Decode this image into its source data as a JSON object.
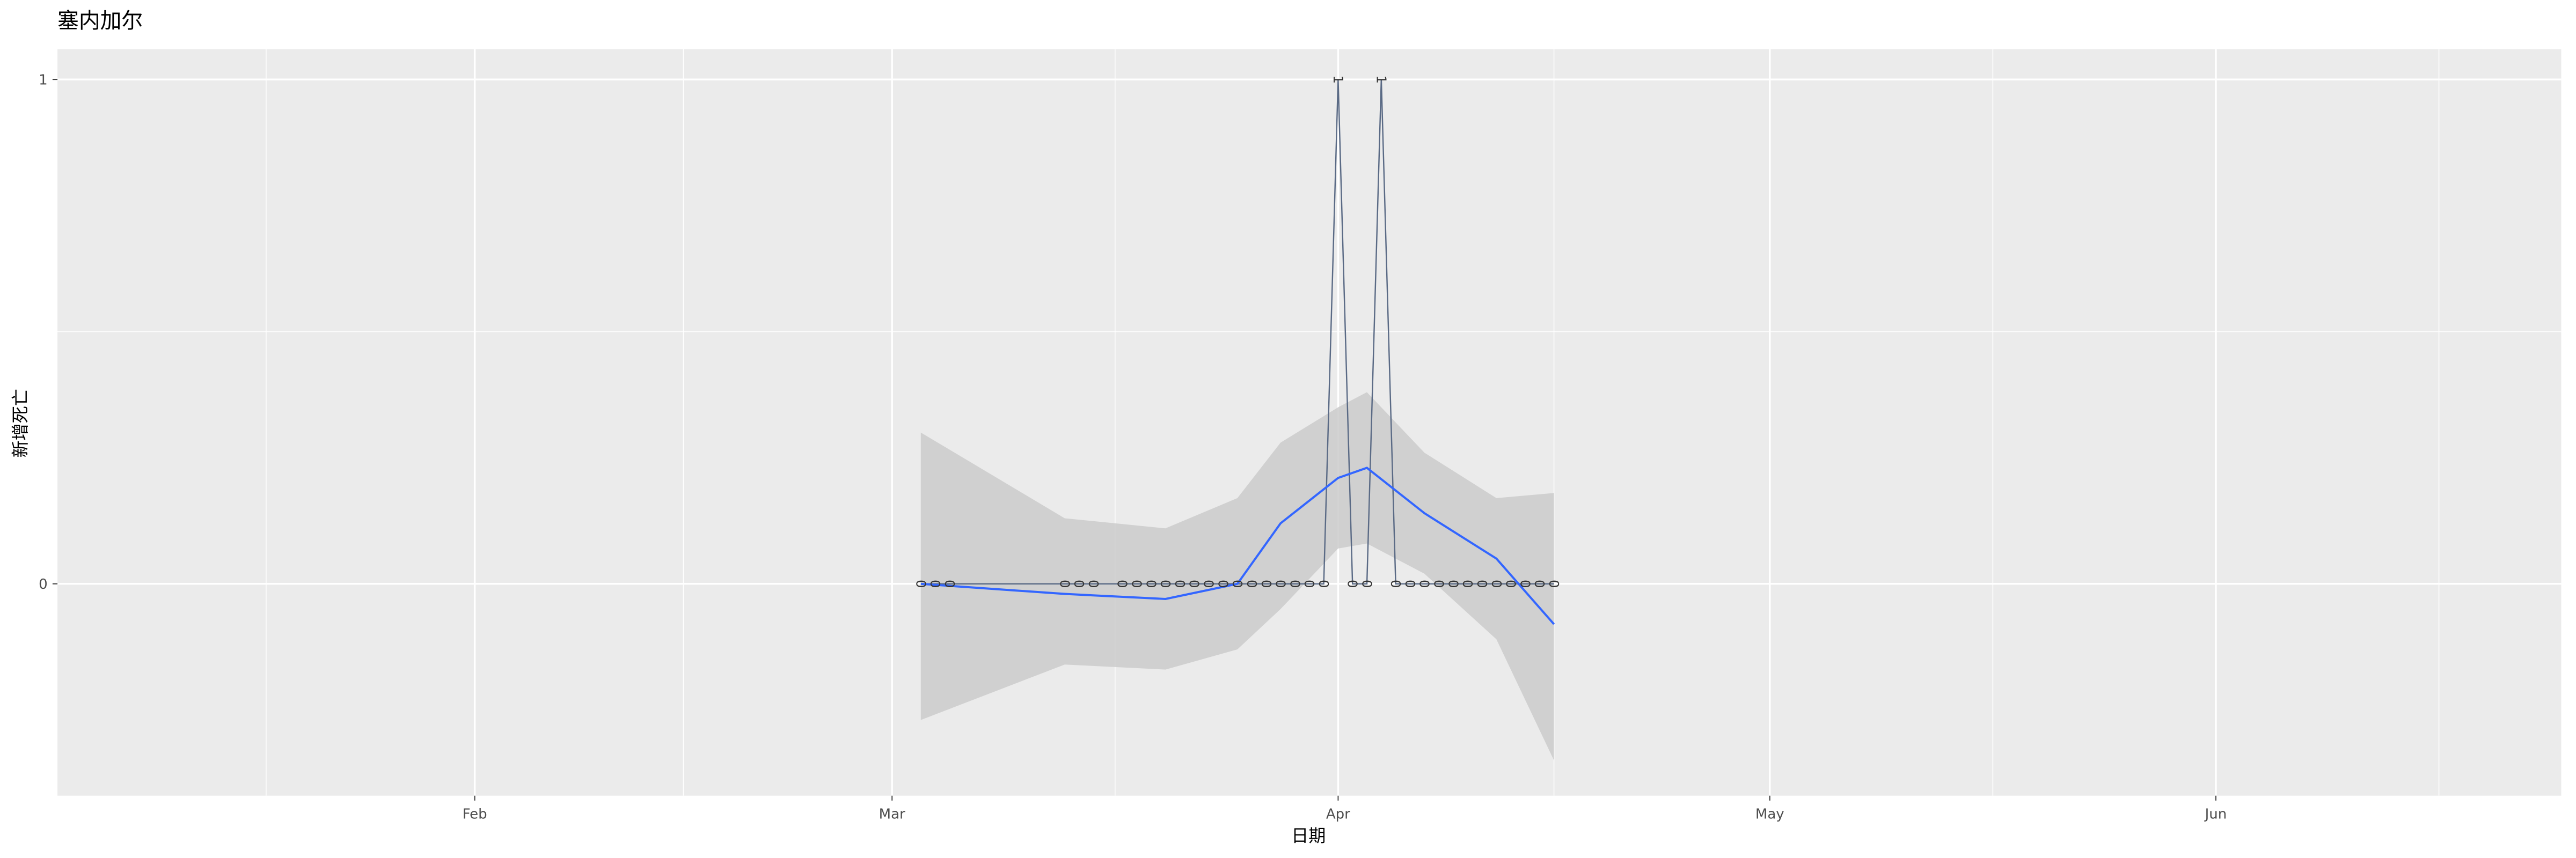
{
  "chart_data": {
    "type": "line",
    "title": "塞内加尔",
    "x_label": "日期",
    "y_label": "新增死亡",
    "x": [
      "Mar 3",
      "Mar 4",
      "Mar 5",
      "Mar 13",
      "Mar 14",
      "Mar 15",
      "Mar 17",
      "Mar 18",
      "Mar 19",
      "Mar 20",
      "Mar 21",
      "Mar 22",
      "Mar 23",
      "Mar 24",
      "Mar 25",
      "Mar 26",
      "Mar 27",
      "Mar 28",
      "Mar 29",
      "Mar 30",
      "Mar 31",
      "Apr 1",
      "Apr 2",
      "Apr 3",
      "Apr 4",
      "Apr 5",
      "Apr 6",
      "Apr 7",
      "Apr 8",
      "Apr 9",
      "Apr 10",
      "Apr 11",
      "Apr 12",
      "Apr 13",
      "Apr 14",
      "Apr 15",
      "Apr 16"
    ],
    "values": [
      0,
      0,
      0,
      0,
      0,
      0,
      0,
      0,
      0,
      0,
      0,
      0,
      0,
      0,
      0,
      0,
      0,
      0,
      0,
      0,
      0,
      1,
      0,
      0,
      1,
      0,
      0,
      0,
      0,
      0,
      0,
      0,
      0,
      0,
      0,
      0,
      0
    ],
    "color": "#5a6a85",
    "smooth": {
      "x": [
        "Mar 3",
        "Mar 13",
        "Mar 20",
        "Mar 25",
        "Mar 28",
        "Apr 1",
        "Apr 3",
        "Apr 7",
        "Apr 12",
        "Apr 16"
      ],
      "values": [
        0.0,
        -0.02,
        -0.03,
        0.0,
        0.12,
        0.21,
        0.23,
        0.14,
        0.05,
        -0.08
      ],
      "lower": [
        -0.27,
        -0.16,
        -0.17,
        -0.13,
        -0.05,
        0.07,
        0.08,
        0.02,
        -0.11,
        -0.35
      ],
      "upper": [
        0.3,
        0.13,
        0.11,
        0.17,
        0.28,
        0.35,
        0.38,
        0.26,
        0.17,
        0.18
      ],
      "color": "#3366ff",
      "band_color": "#cbcbcb"
    },
    "xlim": [
      "Jan 3",
      "Jun 25"
    ],
    "xticks": [
      {
        "value": "Feb 1",
        "label": "Feb"
      },
      {
        "value": "Mar 1",
        "label": "Mar"
      },
      {
        "value": "Apr 1",
        "label": "Apr"
      },
      {
        "value": "May 1",
        "label": "May"
      },
      {
        "value": "Jun 1",
        "label": "Jun"
      }
    ],
    "ylim": [
      -0.42,
      1.06
    ],
    "yticks": [
      0,
      1
    ],
    "grid": true
  }
}
